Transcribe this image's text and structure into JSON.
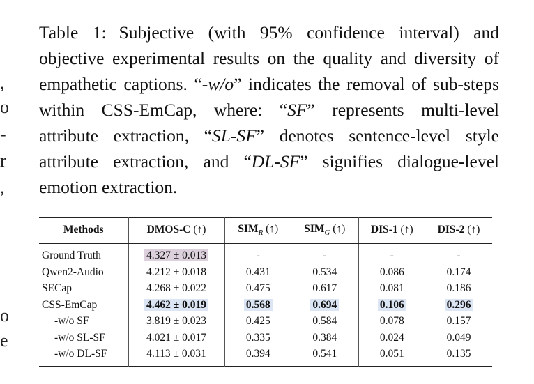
{
  "edge_marks": [
    ",",
    "o",
    "-",
    "r",
    ",",
    "o",
    "e"
  ],
  "caption": {
    "label": "Table 1:",
    "t1": "Subjective (with 95% confidence interval) and objective experimental results on the quality and diversity of empathetic captions. “",
    "i1": "-w/o",
    "t2": "” indicates the removal of sub-steps within CSS-EmCap, where: “",
    "i2": "SF",
    "t3": "” represents multi-level attribute extraction, “",
    "i3": "SL-SF",
    "t4": "” denotes sentence-level style attribute extraction, and “",
    "i4": "DL-SF",
    "t5": "” signifies dialogue-level emotion extraction."
  },
  "table": {
    "headers": {
      "methods": "Methods",
      "dmos": "DMOS-C",
      "sim_r_base": "SIM",
      "sim_r_sub": "R",
      "sim_g_base": "SIM",
      "sim_g_sub": "G",
      "dis1": "DIS-1",
      "dis2": "DIS-2",
      "up_arrow": "(↑)"
    },
    "rows": [
      {
        "method": "Ground Truth",
        "dmos": "4.327 ± 0.013",
        "sim_r": "-",
        "sim_g": "-",
        "dis1": "-",
        "dis2": "-"
      },
      {
        "method": "Qwen2-Audio",
        "dmos": "4.212 ± 0.018",
        "sim_r": "0.431",
        "sim_g": "0.534",
        "dis1": "0.086",
        "dis2": "0.174"
      },
      {
        "method": "SECap",
        "dmos": "4.268 ± 0.022",
        "sim_r": "0.475",
        "sim_g": "0.617",
        "dis1": "0.081",
        "dis2": "0.186"
      },
      {
        "method": "CSS-EmCap",
        "dmos": "4.462 ± 0.019",
        "sim_r": "0.568",
        "sim_g": "0.694",
        "dis1": "0.106",
        "dis2": "0.296"
      },
      {
        "method": "-w/o SF",
        "dmos": "3.819 ± 0.023",
        "sim_r": "0.425",
        "sim_g": "0.584",
        "dis1": "0.078",
        "dis2": "0.157"
      },
      {
        "method": "-w/o SL-SF",
        "dmos": "4.021 ± 0.017",
        "sim_r": "0.335",
        "sim_g": "0.384",
        "dis1": "0.024",
        "dis2": "0.049"
      },
      {
        "method": "-w/o DL-SF",
        "dmos": "4.113 ± 0.031",
        "sim_r": "0.394",
        "sim_g": "0.541",
        "dis1": "0.051",
        "dis2": "0.135"
      }
    ]
  }
}
